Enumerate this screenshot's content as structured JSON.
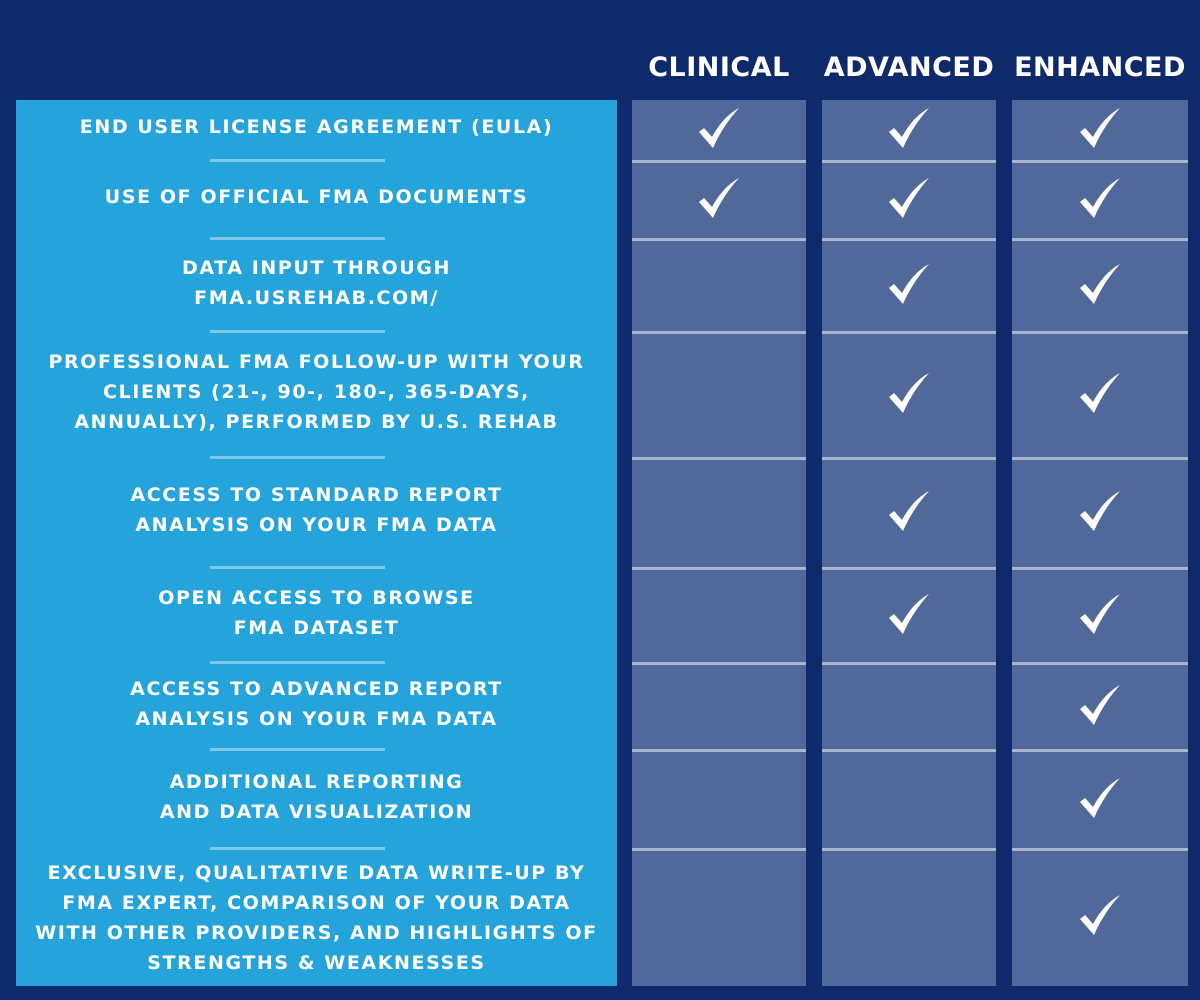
{
  "colors": {
    "background": "#0e2a6b",
    "feature_panel": "#25a4dc",
    "plan_cell": "#50699a",
    "check": "#ffffff"
  },
  "plans": [
    "CLINICAL",
    "ADVANCED",
    "ENHANCED"
  ],
  "features": [
    {
      "label": "END USER LICENSE AGREEMENT (EULA)",
      "included": [
        true,
        true,
        true
      ]
    },
    {
      "label": "USE OF OFFICIAL FMA DOCUMENTS",
      "included": [
        true,
        true,
        true
      ]
    },
    {
      "label": "DATA INPUT THROUGH\nFMA.USREHAB.COM/",
      "included": [
        false,
        true,
        true
      ]
    },
    {
      "label": "PROFESSIONAL FMA FOLLOW-UP WITH YOUR\nCLIENTS (21-, 90-, 180-, 365-DAYS,\nANNUALLY), PERFORMED BY U.S. REHAB",
      "included": [
        false,
        true,
        true
      ]
    },
    {
      "label": "ACCESS TO STANDARD REPORT\nANALYSIS ON YOUR FMA DATA",
      "included": [
        false,
        true,
        true
      ]
    },
    {
      "label": "OPEN ACCESS TO BROWSE\nFMA DATASET",
      "included": [
        false,
        true,
        true
      ]
    },
    {
      "label": "ACCESS TO ADVANCED REPORT\nANALYSIS ON YOUR FMA DATA",
      "included": [
        false,
        false,
        true
      ]
    },
    {
      "label": "ADDITIONAL REPORTING\nAND DATA VISUALIZATION",
      "included": [
        false,
        false,
        true
      ]
    },
    {
      "label": "EXCLUSIVE, QUALITATIVE DATA WRITE-UP BY\nFMA EXPERT, COMPARISON OF YOUR DATA\nWITH OTHER PROVIDERS, AND HIGHLIGHTS OF\nSTRENGTHS & WEAKNESSES",
      "included": [
        false,
        false,
        true
      ]
    }
  ],
  "icons": {
    "included": "checkmark-icon"
  }
}
